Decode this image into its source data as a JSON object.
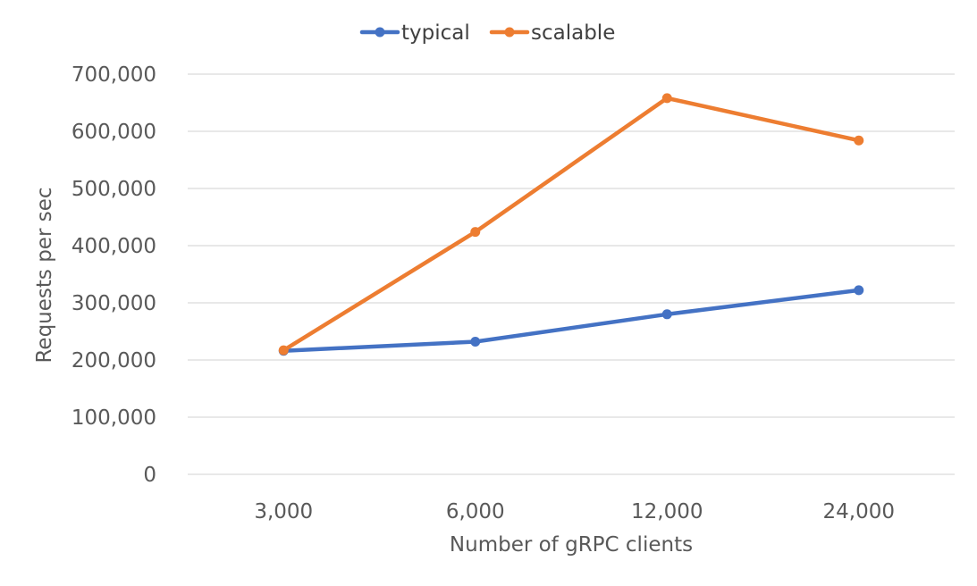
{
  "chart_data": {
    "type": "line",
    "categories": [
      "3,000",
      "6,000",
      "12,000",
      "24,000"
    ],
    "series": [
      {
        "name": "typical",
        "color": "#4472C4",
        "values": [
          216000,
          232000,
          280000,
          322000
        ]
      },
      {
        "name": "scalable",
        "color": "#ED7D31",
        "values": [
          217000,
          424000,
          658000,
          584000
        ]
      }
    ],
    "xlabel": "Number of gRPC clients",
    "ylabel": "Requests per sec",
    "ylim": [
      0,
      700000
    ],
    "yticks": [
      0,
      100000,
      200000,
      300000,
      400000,
      500000,
      600000,
      700000
    ],
    "ytick_labels": [
      "0",
      "100,000",
      "200,000",
      "300,000",
      "400,000",
      "500,000",
      "600,000",
      "700,000"
    ],
    "grid": true,
    "gridline_color": "#D9D9D9",
    "legend_position": "top-center"
  }
}
